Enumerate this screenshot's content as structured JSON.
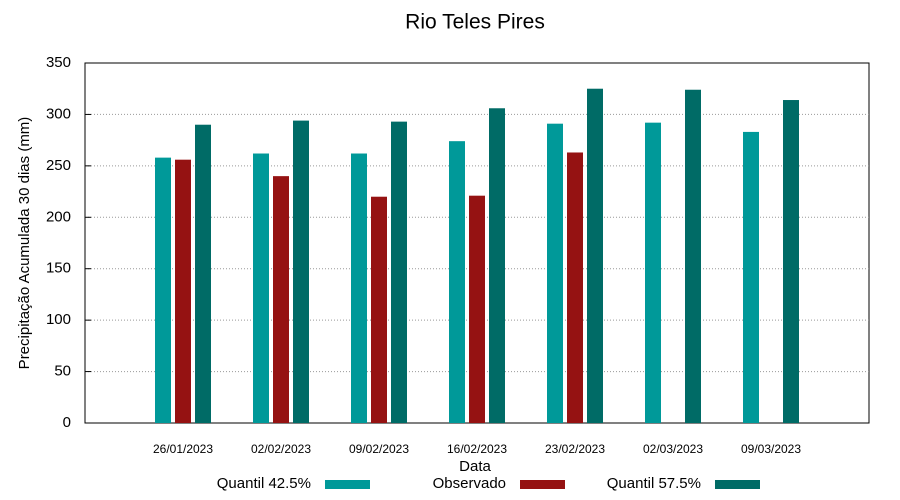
{
  "chart_data": {
    "type": "bar",
    "title": "Rio Teles Pires",
    "x_label": "Data",
    "y_label": "Precipitação Acumulada 30 dias (mm)",
    "categories": [
      "26/01/2023",
      "02/02/2023",
      "09/02/2023",
      "16/02/2023",
      "23/02/2023",
      "02/03/2023",
      "09/03/2023"
    ],
    "series": [
      {
        "name": "Quantil 42.5%",
        "color": "#009999",
        "values": [
          258,
          262,
          262,
          274,
          291,
          292,
          283
        ]
      },
      {
        "name": "Observado",
        "color": "#951212",
        "values": [
          256,
          240,
          220,
          221,
          263,
          null,
          null
        ]
      },
      {
        "name": "Quantil 57.5%",
        "color": "#006b66",
        "values": [
          290,
          294,
          293,
          306,
          325,
          324,
          314
        ]
      }
    ],
    "ylim": [
      0,
      350
    ],
    "yticks": [
      0,
      50,
      100,
      150,
      200,
      250,
      300,
      350
    ],
    "grid": true
  }
}
